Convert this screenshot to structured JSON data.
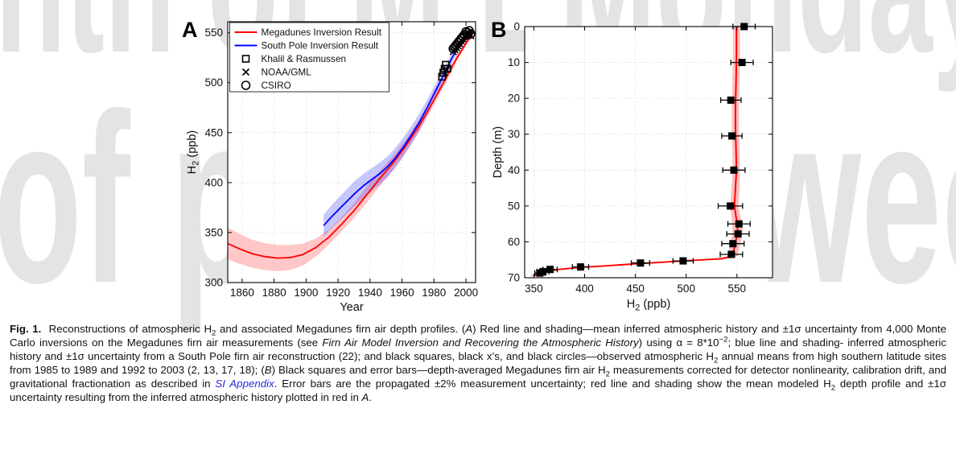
{
  "watermark": {
    "color": "#e4e4e7",
    "top_left": "nth of M E",
    "top_right": "Monday",
    "mid_left": "of pu",
    "mid_right": "week"
  },
  "figure": {
    "panel_a_label": "A",
    "panel_b_label": "B",
    "caption_segments": [
      [
        "b",
        "Fig. 1."
      ],
      [
        "n",
        "  Reconstructions of atmospheric H"
      ],
      [
        "sub",
        "2"
      ],
      [
        "n",
        " and associated Megadunes firn air depth profiles. ("
      ],
      [
        "i",
        "A"
      ],
      [
        "n",
        ") Red line and shading—mean inferred atmospheric history and ±1σ uncertainty from 4,000 Monte Carlo inversions on the Megadunes firn air measurements (see "
      ],
      [
        "i",
        "Firn Air Model Inversion and Recovering the Atmospheric History"
      ],
      [
        "n",
        ") using α = 8*10"
      ],
      [
        "sup",
        "−2"
      ],
      [
        "n",
        "; blue line and shading- inferred atmospheric history and ±1σ uncertainty from a South Pole firn air reconstruction (22); and black squares, black x’s, and black circles—observed atmospheric H"
      ],
      [
        "sub",
        "2"
      ],
      [
        "n",
        " annual means from high southern latitude sites from 1985 to 1989 and 1992 to 2003 (2, 13, 17, 18); ("
      ],
      [
        "i",
        "B"
      ],
      [
        "n",
        ") Black squares and error bars—depth-averaged Megadunes firn air H"
      ],
      [
        "sub",
        "2"
      ],
      [
        "n",
        " measurements corrected for detector nonlinearity, calibration drift, and gravitational fractionation as described in "
      ],
      [
        "link",
        "SI Appendix"
      ],
      [
        "n",
        ". Error bars are the propagated ±2% measurement uncertainty; red line and shading show the mean modeled H"
      ],
      [
        "sub",
        "2"
      ],
      [
        "n",
        " depth profile and ±1σ uncertainty resulting from the inferred atmospheric history plotted in red in "
      ],
      [
        "i",
        "A"
      ],
      [
        "n",
        "."
      ]
    ]
  },
  "chart_data": [
    {
      "panel": "A",
      "type": "line",
      "xlabel": "Year",
      "ylabel": "H2 (ppb)",
      "xlim": [
        1851,
        2006
      ],
      "ylim": [
        300,
        561
      ],
      "xticks": [
        1860,
        1880,
        1900,
        1920,
        1940,
        1960,
        1980,
        2000
      ],
      "yticks": [
        300,
        350,
        400,
        450,
        500,
        550
      ],
      "grid": true,
      "legend_position": "top-left",
      "legend": [
        "Megadunes Inversion Result",
        "South Pole Inversion Result",
        "Khalil & Rasmussen",
        "NOAA/GML",
        "CSIRO"
      ],
      "series": [
        {
          "name": "Megadunes Inversion Result",
          "color": "#ff0000",
          "band_opacity": 0.22,
          "x": [
            1851,
            1858,
            1866,
            1874,
            1882,
            1890,
            1898,
            1906,
            1914,
            1922,
            1930,
            1938,
            1946,
            1954,
            1962,
            1970,
            1978,
            1986,
            1994,
            2001,
            2004
          ],
          "y": [
            339,
            334,
            329,
            326,
            324.5,
            325,
            328,
            335,
            345,
            358,
            372,
            388,
            404,
            419,
            436,
            455,
            477,
            500,
            524,
            542,
            548
          ],
          "band": [
            16,
            15,
            14,
            13.5,
            13,
            12.5,
            11,
            9,
            7.5,
            7,
            7.5,
            8,
            7.5,
            7,
            6.5,
            6,
            5.5,
            4.5,
            3.5,
            2.5,
            2
          ]
        },
        {
          "name": "South Pole Inversion Result",
          "color": "#0000ff",
          "band_opacity": 0.22,
          "x": [
            1911,
            1916,
            1921,
            1926,
            1931,
            1936,
            1941,
            1946,
            1951,
            1956,
            1961,
            1966,
            1971,
            1976,
            1981,
            1986,
            1991,
            1996,
            1999
          ],
          "y": [
            357,
            366,
            374,
            382,
            390,
            397,
            403,
            409,
            416,
            425,
            436,
            448,
            461,
            476,
            492,
            508,
            524,
            539,
            546
          ],
          "band": [
            11,
            11.5,
            12,
            12.5,
            12.5,
            12,
            11.5,
            11,
            10.5,
            10,
            9.5,
            9,
            8.5,
            8,
            7,
            6,
            5,
            4,
            3.5
          ]
        }
      ],
      "scatter": [
        {
          "name": "Khalil & Rasmussen",
          "marker": "square",
          "points": [
            [
              1985,
              506
            ],
            [
              1985.8,
              510
            ],
            [
              1986.6,
              514
            ],
            [
              1987.4,
              518
            ],
            [
              1988.4,
              514
            ]
          ]
        },
        {
          "name": "NOAA/GML",
          "marker": "x",
          "points": [
            [
              1992,
              531
            ],
            [
              1993,
              533
            ],
            [
              1994,
              535
            ],
            [
              1995,
              537
            ],
            [
              1996,
              539
            ],
            [
              1997,
              542
            ],
            [
              1998,
              544
            ],
            [
              1999,
              546
            ],
            [
              2000,
              548
            ],
            [
              2001,
              547
            ],
            [
              2002,
              549
            ],
            [
              2003,
              547
            ]
          ]
        },
        {
          "name": "CSIRO",
          "marker": "circle",
          "points": [
            [
              1992,
              534
            ],
            [
              1993,
              536
            ],
            [
              1994,
              538
            ],
            [
              1995,
              540
            ],
            [
              1996,
              542
            ],
            [
              1997,
              544
            ],
            [
              1998,
              546
            ],
            [
              1999,
              548
            ],
            [
              2000,
              551
            ],
            [
              2001,
              550
            ],
            [
              2002,
              552
            ],
            [
              2003,
              549
            ]
          ]
        }
      ]
    },
    {
      "panel": "B",
      "type": "line",
      "xlabel": "H2 (ppb)",
      "ylabel": "Depth (m)",
      "xlim": [
        341,
        585
      ],
      "ylim": [
        0,
        70
      ],
      "y_down": true,
      "xticks": [
        350,
        400,
        450,
        500,
        550
      ],
      "yticks": [
        0,
        10,
        20,
        30,
        40,
        50,
        60,
        70
      ],
      "grid": true,
      "line": {
        "name": "Modeled H2 depth profile",
        "color": "#ff0000",
        "band_opacity": 0.25,
        "ppb": [
          549.5,
          549.5,
          549,
          548.5,
          548.5,
          549,
          549.5,
          548.5,
          547.5,
          549,
          550.5,
          550.5,
          549,
          547.5,
          546.5,
          545.5,
          535,
          510,
          480,
          452,
          420,
          396,
          375,
          362,
          356,
          352,
          350
        ],
        "depth": [
          0,
          8,
          16,
          22,
          28,
          34,
          40,
          45,
          50,
          53,
          55.5,
          57.5,
          59.5,
          61.5,
          63,
          64,
          64.7,
          65.1,
          65.6,
          66.1,
          66.7,
          67.1,
          67.7,
          68.2,
          68.7,
          69.2,
          69.6
        ],
        "band": [
          3.5,
          3.5,
          3.5,
          3.5,
          3.5,
          3.5,
          3.5,
          4,
          4,
          4.5,
          5,
          5,
          5,
          5,
          5,
          5,
          6,
          6,
          5,
          5,
          4,
          4,
          4,
          4,
          4,
          4,
          4
        ]
      },
      "measurements": {
        "name": "Megadunes firn air H2 measurements",
        "marker": "filled-square",
        "points": [
          [
            557,
            0,
            11
          ],
          [
            555,
            10,
            11
          ],
          [
            544,
            20.5,
            10
          ],
          [
            545,
            30.5,
            10
          ],
          [
            547,
            40,
            11
          ],
          [
            543.5,
            50,
            12
          ],
          [
            552,
            55,
            11
          ],
          [
            551,
            57.8,
            11
          ],
          [
            546,
            60.5,
            11
          ],
          [
            544.5,
            63.5,
            11
          ],
          [
            497,
            65.3,
            10
          ],
          [
            455,
            65.9,
            9
          ],
          [
            396,
            67,
            8
          ],
          [
            366,
            67.7,
            7
          ],
          [
            359,
            68.3,
            6
          ],
          [
            356,
            68.7,
            5
          ]
        ]
      }
    }
  ]
}
